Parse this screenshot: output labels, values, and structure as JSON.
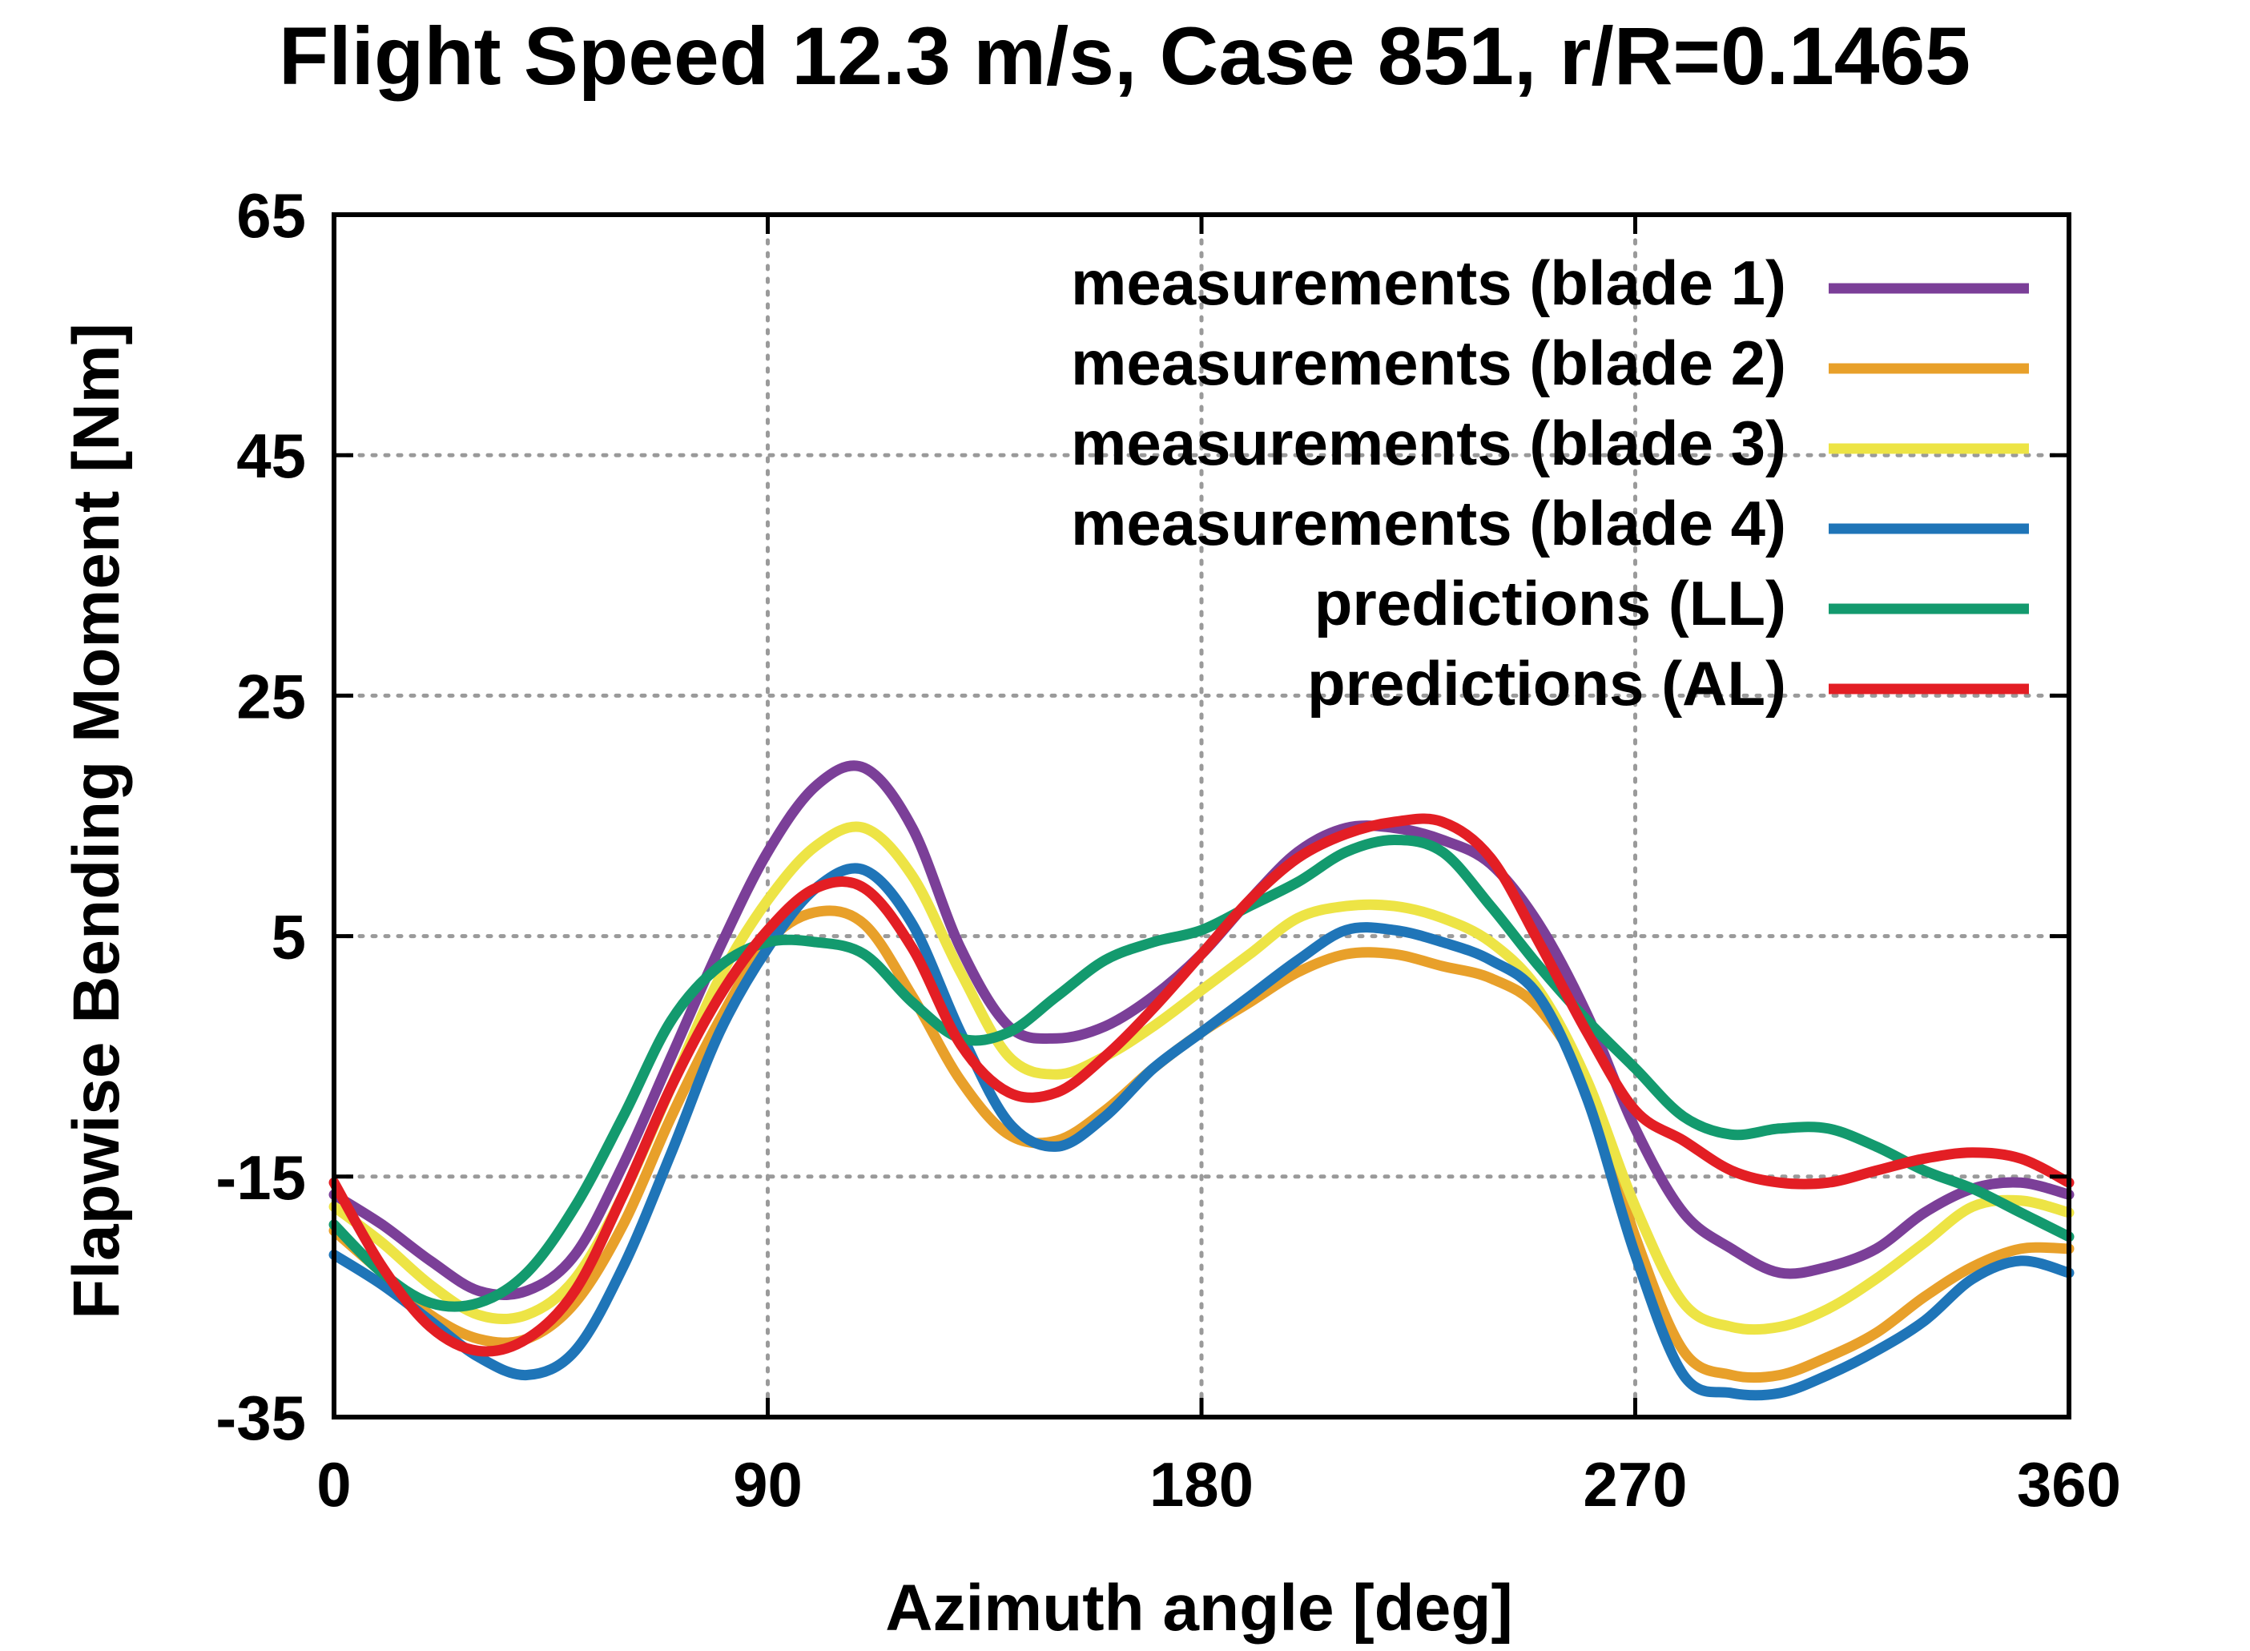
{
  "chart_data": {
    "type": "line",
    "title": "Flight Speed 12.3 m/s, Case 851, r/R=0.1465",
    "xlabel": "Azimuth angle [deg]",
    "ylabel": "Flapwise Bending Moment [Nm]",
    "xlim": [
      0,
      360
    ],
    "ylim": [
      -35,
      65
    ],
    "xticks": [
      0,
      90,
      180,
      270,
      360
    ],
    "yticks": [
      -35,
      -15,
      5,
      25,
      45,
      65
    ],
    "xtick_labels": [
      "0",
      "90",
      "180",
      "270",
      "360"
    ],
    "ytick_labels": [
      "-35",
      "-15",
      "5",
      "25",
      "45",
      "65"
    ],
    "grid": true,
    "legend_position": "top-right",
    "series": [
      {
        "name": "measurements (blade 1)",
        "color": "#7b3f98",
        "x": [
          0,
          10,
          20,
          30,
          40,
          50,
          60,
          70,
          80,
          90,
          100,
          110,
          120,
          130,
          140,
          150,
          160,
          170,
          180,
          190,
          200,
          210,
          220,
          230,
          240,
          250,
          260,
          270,
          280,
          290,
          300,
          310,
          320,
          330,
          340,
          350,
          360
        ],
        "y": [
          -16.5,
          -19,
          -22,
          -24.5,
          -24.5,
          -21.5,
          -14,
          -5,
          4,
          12,
          17.5,
          19,
          14,
          4,
          -2.5,
          -3.5,
          -2.5,
          0,
          3.5,
          8,
          12,
          14,
          14,
          13,
          11,
          6,
          -1.5,
          -11,
          -18,
          -21,
          -23,
          -22.5,
          -21,
          -18,
          -16,
          -15.5,
          -16.5
        ]
      },
      {
        "name": "measurements (blade 2)",
        "color": "#e8a02a",
        "x": [
          0,
          10,
          20,
          30,
          40,
          50,
          60,
          70,
          80,
          90,
          100,
          110,
          120,
          130,
          140,
          150,
          160,
          170,
          180,
          190,
          200,
          210,
          220,
          230,
          240,
          250,
          260,
          270,
          280,
          290,
          300,
          310,
          320,
          330,
          340,
          350,
          360
        ],
        "y": [
          -19.5,
          -23,
          -26.5,
          -28.5,
          -28.5,
          -25.5,
          -19,
          -10,
          -2,
          4.5,
          7,
          6,
          0,
          -7,
          -11.5,
          -12,
          -9.5,
          -6,
          -3,
          -0.5,
          2,
          3.5,
          3.5,
          2.5,
          1.5,
          -1,
          -7.5,
          -20,
          -29.5,
          -31.5,
          -31.5,
          -30,
          -28,
          -25,
          -22.5,
          -21,
          -21
        ]
      },
      {
        "name": "measurements (blade 3)",
        "color": "#ede445",
        "x": [
          0,
          10,
          20,
          30,
          40,
          50,
          60,
          70,
          80,
          90,
          100,
          110,
          120,
          130,
          140,
          150,
          160,
          170,
          180,
          190,
          200,
          210,
          220,
          230,
          240,
          250,
          260,
          270,
          280,
          290,
          300,
          310,
          320,
          330,
          340,
          350,
          360
        ],
        "y": [
          -17.5,
          -20.5,
          -24,
          -26.5,
          -26.5,
          -23.5,
          -16.5,
          -7.5,
          1.5,
          8,
          12.5,
          14,
          10,
          2,
          -5,
          -6.5,
          -5,
          -2.5,
          0.5,
          3.5,
          6.5,
          7.5,
          7.5,
          6.5,
          4.5,
          0.5,
          -7,
          -17.5,
          -25.5,
          -27.5,
          -27.5,
          -26,
          -23.5,
          -20.5,
          -17.5,
          -17,
          -18
        ]
      },
      {
        "name": "measurements (blade 4)",
        "color": "#1f75b8",
        "x": [
          0,
          10,
          20,
          30,
          40,
          50,
          60,
          70,
          80,
          90,
          100,
          110,
          120,
          130,
          140,
          150,
          160,
          170,
          180,
          190,
          200,
          210,
          220,
          230,
          240,
          250,
          260,
          270,
          280,
          290,
          300,
          310,
          320,
          330,
          340,
          350,
          360
        ],
        "y": [
          -21.5,
          -24,
          -27,
          -30,
          -31.5,
          -29.5,
          -22.5,
          -13,
          -3,
          4,
          9,
          10.5,
          6,
          -3,
          -10.5,
          -12.5,
          -10,
          -6,
          -3,
          0,
          3,
          5.5,
          5.5,
          4.5,
          3,
          0,
          -8.5,
          -21.5,
          -31.5,
          -33,
          -33,
          -31.5,
          -29.5,
          -27,
          -23.5,
          -22,
          -23
        ]
      },
      {
        "name": "predictions (LL)",
        "color": "#139a6e",
        "x": [
          0,
          10,
          20,
          30,
          40,
          50,
          60,
          70,
          80,
          90,
          100,
          110,
          120,
          130,
          140,
          150,
          160,
          170,
          180,
          190,
          200,
          210,
          220,
          230,
          240,
          250,
          260,
          270,
          280,
          290,
          300,
          310,
          320,
          330,
          340,
          350,
          360
        ],
        "y": [
          -19,
          -23,
          -25.5,
          -25.5,
          -23,
          -17.5,
          -10,
          -2,
          2.5,
          4.5,
          4.5,
          3.5,
          -0.5,
          -3.5,
          -3,
          0,
          3,
          4.5,
          5.5,
          7.5,
          9.5,
          12,
          13,
          12,
          7.5,
          2.5,
          -2,
          -6,
          -10,
          -11.5,
          -11,
          -11,
          -12.5,
          -14.5,
          -16,
          -18,
          -20
        ]
      },
      {
        "name": "predictions (AL)",
        "color": "#e31e24",
        "x": [
          0,
          10,
          20,
          30,
          40,
          50,
          60,
          70,
          80,
          90,
          100,
          110,
          120,
          130,
          140,
          150,
          160,
          170,
          180,
          190,
          200,
          210,
          220,
          230,
          240,
          250,
          260,
          270,
          280,
          290,
          300,
          310,
          320,
          330,
          340,
          350,
          360
        ],
        "y": [
          -15.5,
          -22.5,
          -27.5,
          -29.5,
          -28.5,
          -24.5,
          -16.5,
          -7.5,
          0,
          5.5,
          9,
          9,
          4,
          -4,
          -8,
          -8,
          -5,
          -1,
          3.5,
          8,
          11.5,
          13.5,
          14.5,
          14.5,
          11.5,
          4.5,
          -3,
          -9.5,
          -12,
          -14.5,
          -15.5,
          -15.5,
          -14.5,
          -13.5,
          -13,
          -13.5,
          -15.5
        ]
      }
    ]
  }
}
